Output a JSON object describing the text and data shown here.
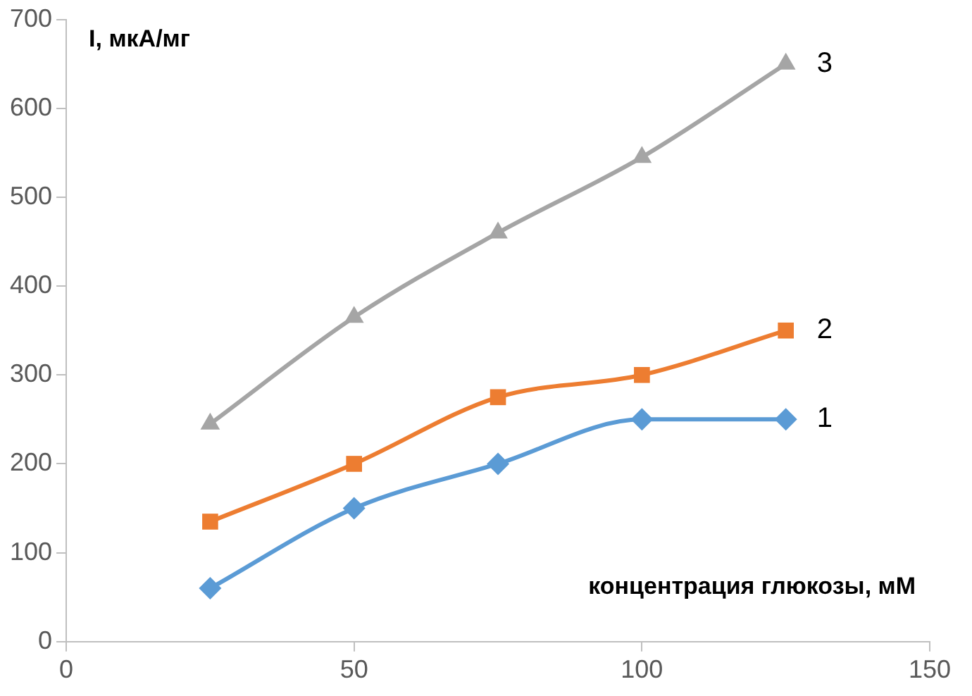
{
  "chart_data": {
    "type": "line",
    "xlabel": "концентрация глюкозы, мМ",
    "ylabel": "I, мкА/мг",
    "x": [
      25,
      50,
      75,
      100,
      125
    ],
    "series": [
      {
        "name": "1",
        "color": "#5b9bd5",
        "marker": "diamond",
        "values": [
          60,
          150,
          200,
          250,
          250
        ]
      },
      {
        "name": "2",
        "color": "#ed7d31",
        "marker": "square",
        "values": [
          135,
          200,
          275,
          300,
          350
        ]
      },
      {
        "name": "3",
        "color": "#a5a5a5",
        "marker": "triangle",
        "values": [
          245,
          365,
          460,
          545,
          650
        ]
      }
    ],
    "xlim": [
      0,
      150
    ],
    "xticks": [
      0,
      50,
      100,
      150
    ],
    "ylim": [
      0,
      700
    ],
    "yticks": [
      0,
      100,
      200,
      300,
      400,
      500,
      600,
      700
    ],
    "grid": false,
    "legend": false
  }
}
